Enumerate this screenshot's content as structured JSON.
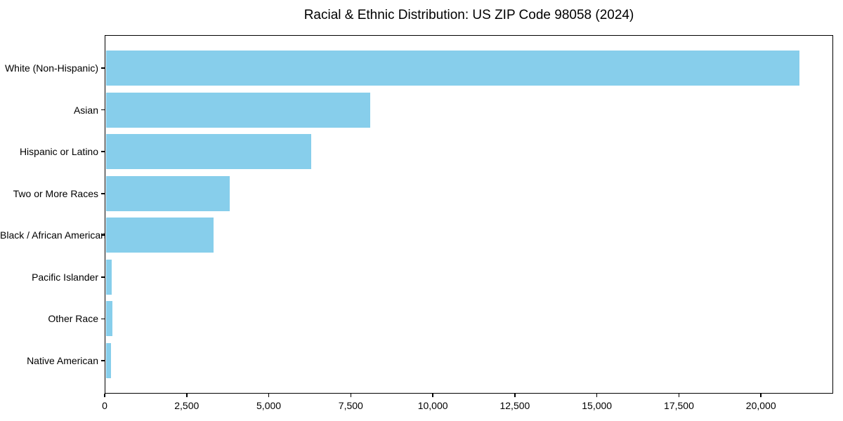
{
  "chart_data": {
    "type": "bar",
    "orientation": "horizontal",
    "title": "Racial & Ethnic Distribution: US ZIP Code 98058 (2024)",
    "categories": [
      "White (Non-Hispanic)",
      "Asian",
      "Hispanic or Latino",
      "Two or More Races",
      "Black / African American",
      "Pacific Islander",
      "Other Race",
      "Native American"
    ],
    "values": [
      21130,
      8060,
      6260,
      3780,
      3280,
      190,
      200,
      150
    ],
    "bar_color": "#87CEEB",
    "xlabel": "",
    "ylabel": "",
    "xlim": [
      0,
      22200
    ],
    "x_ticks": [
      0,
      2500,
      5000,
      7500,
      10000,
      12500,
      15000,
      17500,
      20000
    ],
    "x_tick_labels": [
      "0",
      "2,500",
      "5,000",
      "7,500",
      "10,000",
      "12,500",
      "15,000",
      "17,500",
      "20,000"
    ],
    "grid": false,
    "legend": "none",
    "background_color": "#ffffff",
    "text_color": "#000000"
  }
}
